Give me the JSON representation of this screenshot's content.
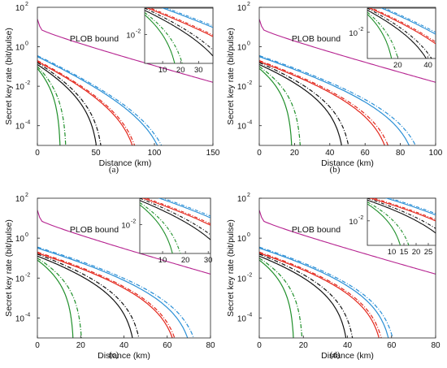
{
  "figure": {
    "colors": {
      "plob": "#b5218f",
      "green": "#1f8f2a",
      "black": "#111111",
      "red": "#e3261b",
      "blue": "#2a8fd6"
    }
  },
  "chart_data": [
    {
      "type": "line",
      "panel_label": "(a)",
      "xlabel": "Distance (km)",
      "ylabel": "Secret key rate (bit/pulse)",
      "xlim": [
        0,
        150
      ],
      "xticks": [
        "0",
        "50",
        "100",
        "150"
      ],
      "ylim_log10": [
        -5,
        2
      ],
      "yticks": [
        "10",
        "10",
        "10",
        "10"
      ],
      "yticks_exp": [
        "2",
        "0",
        "-2",
        "-4"
      ],
      "ytick_values": [
        2,
        0,
        -2,
        -4
      ],
      "annotation": "PLOB bound",
      "series": [
        {
          "key": "plob",
          "dashed": false,
          "y0": 1.0,
          "cutoff": 150
        },
        {
          "key": "blue",
          "dashed": true,
          "y0": -0.45,
          "cutoff": 117
        },
        {
          "key": "blue",
          "dashed": false,
          "y0": -0.5,
          "cutoff": 113
        },
        {
          "key": "red",
          "dashed": true,
          "y0": -0.7,
          "cutoff": 90
        },
        {
          "key": "red",
          "dashed": false,
          "y0": -0.75,
          "cutoff": 88
        },
        {
          "key": "black",
          "dashed": true,
          "y0": -0.8,
          "cutoff": 57
        },
        {
          "key": "black",
          "dashed": false,
          "y0": -0.9,
          "cutoff": 53
        },
        {
          "key": "green",
          "dashed": true,
          "y0": -1.0,
          "cutoff": 25
        },
        {
          "key": "green",
          "dashed": false,
          "y0": -1.1,
          "cutoff": 20
        }
      ],
      "inset": {
        "xlim": [
          0,
          38
        ],
        "xticks": [
          "10",
          "20",
          "30"
        ],
        "xtick_values": [
          10,
          20,
          30
        ],
        "ylim_log10": [
          -3.3,
          -0.8
        ],
        "ytick_label": "10",
        "ytick_exp": "-2"
      }
    },
    {
      "type": "line",
      "panel_label": "(b)",
      "xlabel": "Distance (km)",
      "ylabel": "Secret key rate (bit/pulse)",
      "xlim": [
        0,
        100
      ],
      "xticks": [
        "0",
        "20",
        "40",
        "60",
        "80",
        "100"
      ],
      "ylim_log10": [
        -5,
        2
      ],
      "yticks": [
        "10",
        "10",
        "10",
        "10"
      ],
      "yticks_exp": [
        "2",
        "0",
        "-2",
        "-4"
      ],
      "ytick_values": [
        2,
        0,
        -2,
        -4
      ],
      "annotation": "PLOB bound",
      "series": [
        {
          "key": "plob",
          "dashed": false,
          "y0": 1.0,
          "cutoff": 100
        },
        {
          "key": "blue",
          "dashed": true,
          "y0": -0.45,
          "cutoff": 95
        },
        {
          "key": "blue",
          "dashed": false,
          "y0": -0.5,
          "cutoff": 91
        },
        {
          "key": "red",
          "dashed": true,
          "y0": -0.7,
          "cutoff": 78
        },
        {
          "key": "red",
          "dashed": false,
          "y0": -0.75,
          "cutoff": 76
        },
        {
          "key": "black",
          "dashed": true,
          "y0": -0.8,
          "cutoff": 53
        },
        {
          "key": "black",
          "dashed": false,
          "y0": -0.9,
          "cutoff": 49
        },
        {
          "key": "green",
          "dashed": true,
          "y0": -1.0,
          "cutoff": 24
        },
        {
          "key": "green",
          "dashed": false,
          "y0": -1.1,
          "cutoff": 19
        }
      ],
      "inset": {
        "xlim": [
          0,
          45
        ],
        "xticks": [
          "20",
          "40"
        ],
        "xtick_values": [
          20,
          40
        ],
        "ylim_log10": [
          -3.3,
          -0.8
        ],
        "ytick_label": "10",
        "ytick_exp": "-2"
      }
    },
    {
      "type": "line",
      "panel_label": "(c)",
      "xlabel": "Distance (km)",
      "ylabel": "Secret key rate (bit/pulse)",
      "xlim": [
        0,
        80
      ],
      "xticks": [
        "0",
        "20",
        "40",
        "60",
        "80"
      ],
      "ylim_log10": [
        -5,
        2
      ],
      "yticks": [
        "10",
        "10",
        "10",
        "10"
      ],
      "yticks_exp": [
        "2",
        "0",
        "-2",
        "-4"
      ],
      "ytick_values": [
        2,
        0,
        -2,
        -4
      ],
      "annotation": "PLOB bound",
      "series": [
        {
          "key": "plob",
          "dashed": false,
          "y0": 1.0,
          "cutoff": 80
        },
        {
          "key": "blue",
          "dashed": true,
          "y0": -0.45,
          "cutoff": 76
        },
        {
          "key": "blue",
          "dashed": false,
          "y0": -0.5,
          "cutoff": 73
        },
        {
          "key": "red",
          "dashed": true,
          "y0": -0.7,
          "cutoff": 67
        },
        {
          "key": "red",
          "dashed": false,
          "y0": -0.75,
          "cutoff": 66
        },
        {
          "key": "black",
          "dashed": true,
          "y0": -0.8,
          "cutoff": 49
        },
        {
          "key": "black",
          "dashed": false,
          "y0": -0.9,
          "cutoff": 46
        },
        {
          "key": "green",
          "dashed": true,
          "y0": -1.0,
          "cutoff": 21
        },
        {
          "key": "green",
          "dashed": false,
          "y0": -1.1,
          "cutoff": 17
        }
      ],
      "inset": {
        "xlim": [
          0,
          31
        ],
        "xticks": [
          "10",
          "20",
          "30"
        ],
        "xtick_values": [
          10,
          20,
          30
        ],
        "ylim_log10": [
          -3.3,
          -0.8
        ],
        "ytick_label": "10",
        "ytick_exp": "-2"
      }
    },
    {
      "type": "line",
      "panel_label": "(d)",
      "xlabel": "Distance (km)",
      "ylabel": "Secret key rate (bit/pulse)",
      "xlim": [
        0,
        80
      ],
      "xticks": [
        "0",
        "20",
        "40",
        "60",
        "80"
      ],
      "ylim_log10": [
        -5,
        2
      ],
      "yticks": [
        "10",
        "10",
        "10",
        "10"
      ],
      "yticks_exp": [
        "2",
        "0",
        "-2",
        "-4"
      ],
      "ytick_values": [
        2,
        0,
        -2,
        -4
      ],
      "annotation": "PLOB bound",
      "series": [
        {
          "key": "plob",
          "dashed": false,
          "y0": 1.0,
          "cutoff": 80
        },
        {
          "key": "blue",
          "dashed": true,
          "y0": -0.45,
          "cutoff": 63
        },
        {
          "key": "blue",
          "dashed": false,
          "y0": -0.5,
          "cutoff": 61
        },
        {
          "key": "red",
          "dashed": true,
          "y0": -0.7,
          "cutoff": 58
        },
        {
          "key": "red",
          "dashed": false,
          "y0": -0.75,
          "cutoff": 57
        },
        {
          "key": "black",
          "dashed": true,
          "y0": -0.8,
          "cutoff": 44
        },
        {
          "key": "black",
          "dashed": false,
          "y0": -0.9,
          "cutoff": 41
        },
        {
          "key": "green",
          "dashed": true,
          "y0": -1.0,
          "cutoff": 20
        },
        {
          "key": "green",
          "dashed": false,
          "y0": -1.1,
          "cutoff": 16
        }
      ],
      "inset": {
        "xlim": [
          0,
          28
        ],
        "xticks": [
          "10",
          "15",
          "20",
          "25"
        ],
        "xtick_values": [
          10,
          15,
          20,
          25
        ],
        "ylim_log10": [
          -3.3,
          -0.8
        ],
        "ytick_label": "10",
        "ytick_exp": "-2"
      }
    }
  ]
}
